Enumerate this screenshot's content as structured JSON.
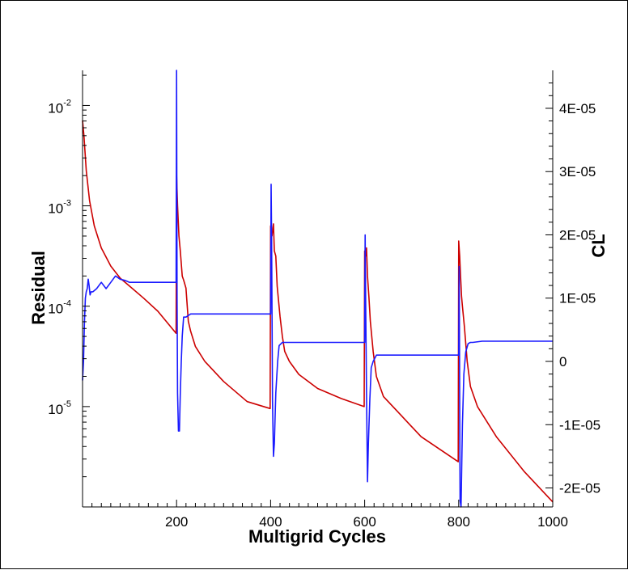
{
  "chart_data": {
    "type": "line",
    "title": "",
    "xlabel": "Multigrid Cycles",
    "ylabel_left": "Residual",
    "ylabel_right": "CL",
    "xlim": [
      0,
      1000
    ],
    "ylim_left_log10": [
      -6.0,
      -1.65
    ],
    "ylim_right": [
      -2.3e-05,
      4.6e-05
    ],
    "x_ticks": [
      200,
      400,
      600,
      800,
      1000
    ],
    "x_tick_labels": [
      "200",
      "400",
      "600",
      "800",
      "1000"
    ],
    "left_ticks": [
      {
        "exp": -2,
        "base": "10",
        "sup": "-2"
      },
      {
        "exp": -3,
        "base": "10",
        "sup": "-3"
      },
      {
        "exp": -4,
        "base": "10",
        "sup": "-4"
      },
      {
        "exp": -5,
        "base": "10",
        "sup": "-5"
      }
    ],
    "right_ticks": [
      {
        "value": 4e-05,
        "label": "4E-05"
      },
      {
        "value": 3e-05,
        "label": "3E-05"
      },
      {
        "value": 2e-05,
        "label": "2E-05"
      },
      {
        "value": 1e-05,
        "label": "1E-05"
      },
      {
        "value": 0,
        "label": "0"
      },
      {
        "value": -1e-05,
        "label": "-1E-05"
      },
      {
        "value": -2e-05,
        "label": "-2E-05"
      }
    ],
    "series": [
      {
        "name": "Residual",
        "axis": "left",
        "color": "#cc0000",
        "x": [
          0,
          3,
          8,
          15,
          25,
          40,
          60,
          80,
          100,
          130,
          160,
          199,
          200,
          202,
          205,
          208,
          212,
          215,
          220,
          225,
          230,
          240,
          260,
          300,
          350,
          399,
          400,
          403,
          406,
          408,
          411,
          414,
          420,
          425,
          430,
          440,
          460,
          500,
          550,
          599,
          600,
          602,
          604,
          606,
          609,
          612,
          618,
          625,
          640,
          670,
          720,
          799,
          800,
          802,
          804,
          806,
          808,
          812,
          818,
          825,
          840,
          880,
          940,
          1000
        ],
        "log10": [
          -2.15,
          -2.3,
          -2.65,
          -2.95,
          -3.2,
          -3.42,
          -3.6,
          -3.72,
          -3.8,
          -3.92,
          -4.05,
          -4.27,
          -2.7,
          -3.0,
          -3.3,
          -3.45,
          -3.7,
          -3.74,
          -3.82,
          -4.15,
          -4.25,
          -4.4,
          -4.55,
          -4.75,
          -4.95,
          -5.02,
          -3.2,
          -3.3,
          -3.18,
          -3.45,
          -3.5,
          -3.8,
          -4.1,
          -4.3,
          -4.45,
          -4.55,
          -4.68,
          -4.82,
          -4.92,
          -5.0,
          -3.45,
          -3.5,
          -3.42,
          -3.7,
          -3.9,
          -4.15,
          -4.45,
          -4.7,
          -4.9,
          -5.05,
          -5.3,
          -5.55,
          -3.35,
          -3.5,
          -3.7,
          -3.9,
          -4.0,
          -4.2,
          -4.55,
          -4.8,
          -5.0,
          -5.3,
          -5.65,
          -5.95
        ]
      },
      {
        "name": "CL",
        "axis": "right",
        "color": "#1a1aff",
        "x": [
          0,
          2,
          4,
          6,
          8,
          10,
          12,
          14,
          16,
          18,
          22,
          30,
          40,
          50,
          60,
          70,
          80,
          90,
          100,
          120,
          150,
          199,
          200,
          201,
          202,
          204,
          206,
          208,
          210,
          212,
          215,
          220,
          230,
          250,
          300,
          350,
          399,
          400,
          401,
          402,
          404,
          406,
          408,
          411,
          415,
          418,
          425,
          440,
          500,
          599,
          600,
          601,
          602,
          604,
          606,
          608,
          611,
          614,
          618,
          625,
          640,
          700,
          799,
          800,
          801,
          802,
          803,
          805,
          808,
          811,
          815,
          820,
          825,
          830,
          850,
          900,
          1000
        ],
        "val": [
          -3e-06,
          0,
          6e-06,
          1e-05,
          1.1e-05,
          1.15e-05,
          1.3e-05,
          1.2e-05,
          1.05e-05,
          1.1e-05,
          1.1e-05,
          1.15e-05,
          1.25e-05,
          1.15e-05,
          1.25e-05,
          1.35e-05,
          1.3e-05,
          1.28e-05,
          1.25e-05,
          1.25e-05,
          1.25e-05,
          1.25e-05,
          4.6e-05,
          1e-05,
          -5e-06,
          -1.1e-05,
          -1.1e-05,
          -5e-06,
          0,
          4e-06,
          7e-06,
          7e-06,
          7.5e-06,
          7.5e-06,
          7.5e-06,
          7.5e-06,
          7.5e-06,
          7.5e-06,
          2.8e-05,
          2e-05,
          -6e-06,
          -1.5e-05,
          -1.3e-05,
          -5e-06,
          0,
          2.5e-06,
          3e-06,
          3e-06,
          3e-06,
          3e-06,
          3e-06,
          2e-05,
          1e-05,
          -5e-06,
          -1.9e-05,
          -1.3e-05,
          -6e-06,
          -1e-06,
          0,
          1e-06,
          1e-06,
          1e-06,
          1e-06,
          1e-06,
          1.5e-05,
          -5e-06,
          -2.2e-05,
          -2.3e-05,
          -1e-05,
          -2e-06,
          1.5e-06,
          2.8e-06,
          3e-06,
          3e-06,
          3.2e-06,
          3.2e-06,
          3.2e-06
        ]
      }
    ]
  }
}
